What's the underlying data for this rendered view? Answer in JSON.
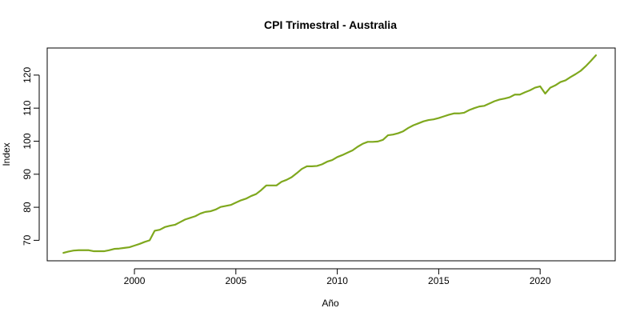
{
  "chart_data": {
    "type": "line",
    "title": "CPI Trimestral - Australia",
    "xlabel": "Año",
    "ylabel": "Index",
    "xlim": [
      1995.7,
      2023.7
    ],
    "ylim": [
      63.8,
      128.2
    ],
    "x_ticks": [
      2000,
      2005,
      2010,
      2015,
      2020
    ],
    "x_tick_labels": [
      "2000",
      "2005",
      "2010",
      "2015",
      "2020"
    ],
    "y_ticks": [
      70,
      80,
      90,
      100,
      110,
      120
    ],
    "y_tick_labels": [
      "70",
      "80",
      "90",
      "100",
      "110",
      "120"
    ],
    "grid": false,
    "series": [
      {
        "name": "CPI",
        "color": "#7fa81e",
        "x": [
          1996.5,
          1996.75,
          1997.0,
          1997.25,
          1997.5,
          1997.75,
          1998.0,
          1998.25,
          1998.5,
          1998.75,
          1999.0,
          1999.25,
          1999.5,
          1999.75,
          2000.0,
          2000.25,
          2000.5,
          2000.75,
          2001.0,
          2001.25,
          2001.5,
          2001.75,
          2002.0,
          2002.25,
          2002.5,
          2002.75,
          2003.0,
          2003.25,
          2003.5,
          2003.75,
          2004.0,
          2004.25,
          2004.5,
          2004.75,
          2005.0,
          2005.25,
          2005.5,
          2005.75,
          2006.0,
          2006.25,
          2006.5,
          2006.75,
          2007.0,
          2007.25,
          2007.5,
          2007.75,
          2008.0,
          2008.25,
          2008.5,
          2008.75,
          2009.0,
          2009.25,
          2009.5,
          2009.75,
          2010.0,
          2010.25,
          2010.5,
          2010.75,
          2011.0,
          2011.25,
          2011.5,
          2011.75,
          2012.0,
          2012.25,
          2012.5,
          2012.75,
          2013.0,
          2013.25,
          2013.5,
          2013.75,
          2014.0,
          2014.25,
          2014.5,
          2014.75,
          2015.0,
          2015.25,
          2015.5,
          2015.75,
          2016.0,
          2016.25,
          2016.5,
          2016.75,
          2017.0,
          2017.25,
          2017.5,
          2017.75,
          2018.0,
          2018.25,
          2018.5,
          2018.75,
          2019.0,
          2019.25,
          2019.5,
          2019.75,
          2020.0,
          2020.25,
          2020.5,
          2020.75,
          2021.0,
          2021.25,
          2021.5,
          2021.75,
          2022.0,
          2022.25,
          2022.5,
          2022.75
        ],
        "values": [
          66.2,
          66.6,
          66.9,
          67.0,
          67.0,
          67.0,
          66.7,
          66.7,
          66.7,
          67.0,
          67.4,
          67.5,
          67.7,
          67.9,
          68.4,
          68.9,
          69.5,
          70.0,
          72.9,
          73.2,
          74.0,
          74.4,
          74.7,
          75.5,
          76.3,
          76.8,
          77.3,
          78.1,
          78.6,
          78.8,
          79.3,
          80.1,
          80.4,
          80.7,
          81.4,
          82.1,
          82.6,
          83.4,
          84.0,
          85.2,
          86.6,
          86.6,
          86.6,
          87.7,
          88.3,
          89.1,
          90.3,
          91.6,
          92.4,
          92.4,
          92.5,
          93.0,
          93.8,
          94.3,
          95.2,
          95.8,
          96.5,
          97.2,
          98.3,
          99.2,
          99.8,
          99.8,
          99.9,
          100.4,
          101.8,
          102.0,
          102.4,
          103.0,
          104.0,
          104.8,
          105.4,
          106.0,
          106.4,
          106.6,
          107.0,
          107.5,
          108.0,
          108.4,
          108.4,
          108.6,
          109.4,
          110.0,
          110.5,
          110.7,
          111.4,
          112.1,
          112.6,
          112.9,
          113.3,
          114.1,
          114.1,
          114.8,
          115.4,
          116.2,
          116.6,
          114.4,
          116.2,
          116.9,
          117.9,
          118.4,
          119.4,
          120.3,
          121.3,
          122.7,
          124.3,
          126.0
        ]
      }
    ]
  }
}
